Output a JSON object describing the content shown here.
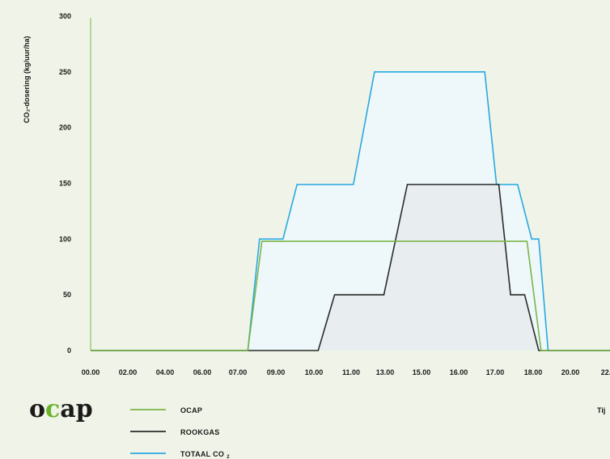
{
  "brand": {
    "logo_text": "ocap",
    "logo_accent_color": "#6ab42d"
  },
  "chart_data": {
    "type": "area",
    "ylabel": "CO₂-dosering (kg/uur/ha)",
    "xlabel": "Tij",
    "ylim": [
      0,
      300
    ],
    "y_ticks": [
      0,
      50,
      100,
      150,
      200,
      250,
      300
    ],
    "x_ticks": [
      "00.00",
      "02.00",
      "04.00",
      "06.00",
      "07.00",
      "09.00",
      "10.00",
      "11.00",
      "13.00",
      "15.00",
      "16.00",
      "17.00",
      "18.00",
      "20.00",
      "22."
    ],
    "grid": false,
    "legend_placement": "bottom",
    "series": [
      {
        "name": "OCAP",
        "color": "#7ab648",
        "fill": null,
        "points": [
          [
            0,
            0
          ],
          [
            6.7,
            0
          ],
          [
            7.3,
            98
          ],
          [
            18.6,
            98
          ],
          [
            19.2,
            0
          ],
          [
            24,
            0
          ]
        ]
      },
      {
        "name": "ROOKGAS",
        "color": "#2b2b2b",
        "fill": "#e8eef0",
        "points": [
          [
            0,
            0
          ],
          [
            9.7,
            0
          ],
          [
            10.4,
            50
          ],
          [
            12.5,
            50
          ],
          [
            13.5,
            149
          ],
          [
            17.4,
            149
          ],
          [
            17.9,
            50
          ],
          [
            18.5,
            50
          ],
          [
            19.1,
            0
          ],
          [
            24,
            0
          ]
        ]
      },
      {
        "name": "TOTAAL CO",
        "name_sub": "2",
        "color": "#29a8e0",
        "fill": "#eef7fa",
        "points": [
          [
            0,
            0
          ],
          [
            6.7,
            0
          ],
          [
            7.2,
            100
          ],
          [
            8.2,
            100
          ],
          [
            8.8,
            149
          ],
          [
            11.2,
            149
          ],
          [
            12.1,
            250
          ],
          [
            16.8,
            250
          ],
          [
            17.3,
            149
          ],
          [
            18.2,
            149
          ],
          [
            18.8,
            100
          ],
          [
            19.1,
            100
          ],
          [
            19.5,
            0
          ],
          [
            24,
            0
          ]
        ]
      }
    ]
  }
}
